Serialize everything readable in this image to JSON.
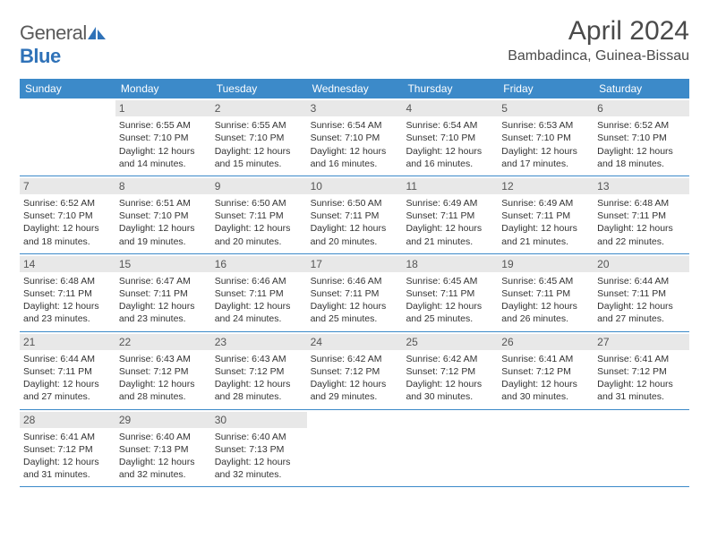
{
  "brand": {
    "name_part1": "General",
    "name_part2": "Blue"
  },
  "title": "April 2024",
  "location": "Bambadinca, Guinea-Bissau",
  "styling": {
    "header_bg": "#3c8ac9",
    "header_text": "#ffffff",
    "daynum_bg": "#e8e8e8",
    "daynum_text": "#555555",
    "body_text": "#333333",
    "row_border": "#3c8ac9",
    "page_bg": "#ffffff",
    "font_family": "Arial",
    "title_fontsize": 30,
    "location_fontsize": 16,
    "dow_fontsize": 12,
    "body_fontsize": 10.5
  },
  "days_of_week": [
    "Sunday",
    "Monday",
    "Tuesday",
    "Wednesday",
    "Thursday",
    "Friday",
    "Saturday"
  ],
  "weeks": [
    [
      null,
      {
        "n": "1",
        "sr": "6:55 AM",
        "ss": "7:10 PM",
        "dl": "12 hours and 14 minutes."
      },
      {
        "n": "2",
        "sr": "6:55 AM",
        "ss": "7:10 PM",
        "dl": "12 hours and 15 minutes."
      },
      {
        "n": "3",
        "sr": "6:54 AM",
        "ss": "7:10 PM",
        "dl": "12 hours and 16 minutes."
      },
      {
        "n": "4",
        "sr": "6:54 AM",
        "ss": "7:10 PM",
        "dl": "12 hours and 16 minutes."
      },
      {
        "n": "5",
        "sr": "6:53 AM",
        "ss": "7:10 PM",
        "dl": "12 hours and 17 minutes."
      },
      {
        "n": "6",
        "sr": "6:52 AM",
        "ss": "7:10 PM",
        "dl": "12 hours and 18 minutes."
      }
    ],
    [
      {
        "n": "7",
        "sr": "6:52 AM",
        "ss": "7:10 PM",
        "dl": "12 hours and 18 minutes."
      },
      {
        "n": "8",
        "sr": "6:51 AM",
        "ss": "7:10 PM",
        "dl": "12 hours and 19 minutes."
      },
      {
        "n": "9",
        "sr": "6:50 AM",
        "ss": "7:11 PM",
        "dl": "12 hours and 20 minutes."
      },
      {
        "n": "10",
        "sr": "6:50 AM",
        "ss": "7:11 PM",
        "dl": "12 hours and 20 minutes."
      },
      {
        "n": "11",
        "sr": "6:49 AM",
        "ss": "7:11 PM",
        "dl": "12 hours and 21 minutes."
      },
      {
        "n": "12",
        "sr": "6:49 AM",
        "ss": "7:11 PM",
        "dl": "12 hours and 21 minutes."
      },
      {
        "n": "13",
        "sr": "6:48 AM",
        "ss": "7:11 PM",
        "dl": "12 hours and 22 minutes."
      }
    ],
    [
      {
        "n": "14",
        "sr": "6:48 AM",
        "ss": "7:11 PM",
        "dl": "12 hours and 23 minutes."
      },
      {
        "n": "15",
        "sr": "6:47 AM",
        "ss": "7:11 PM",
        "dl": "12 hours and 23 minutes."
      },
      {
        "n": "16",
        "sr": "6:46 AM",
        "ss": "7:11 PM",
        "dl": "12 hours and 24 minutes."
      },
      {
        "n": "17",
        "sr": "6:46 AM",
        "ss": "7:11 PM",
        "dl": "12 hours and 25 minutes."
      },
      {
        "n": "18",
        "sr": "6:45 AM",
        "ss": "7:11 PM",
        "dl": "12 hours and 25 minutes."
      },
      {
        "n": "19",
        "sr": "6:45 AM",
        "ss": "7:11 PM",
        "dl": "12 hours and 26 minutes."
      },
      {
        "n": "20",
        "sr": "6:44 AM",
        "ss": "7:11 PM",
        "dl": "12 hours and 27 minutes."
      }
    ],
    [
      {
        "n": "21",
        "sr": "6:44 AM",
        "ss": "7:11 PM",
        "dl": "12 hours and 27 minutes."
      },
      {
        "n": "22",
        "sr": "6:43 AM",
        "ss": "7:12 PM",
        "dl": "12 hours and 28 minutes."
      },
      {
        "n": "23",
        "sr": "6:43 AM",
        "ss": "7:12 PM",
        "dl": "12 hours and 28 minutes."
      },
      {
        "n": "24",
        "sr": "6:42 AM",
        "ss": "7:12 PM",
        "dl": "12 hours and 29 minutes."
      },
      {
        "n": "25",
        "sr": "6:42 AM",
        "ss": "7:12 PM",
        "dl": "12 hours and 30 minutes."
      },
      {
        "n": "26",
        "sr": "6:41 AM",
        "ss": "7:12 PM",
        "dl": "12 hours and 30 minutes."
      },
      {
        "n": "27",
        "sr": "6:41 AM",
        "ss": "7:12 PM",
        "dl": "12 hours and 31 minutes."
      }
    ],
    [
      {
        "n": "28",
        "sr": "6:41 AM",
        "ss": "7:12 PM",
        "dl": "12 hours and 31 minutes."
      },
      {
        "n": "29",
        "sr": "6:40 AM",
        "ss": "7:13 PM",
        "dl": "12 hours and 32 minutes."
      },
      {
        "n": "30",
        "sr": "6:40 AM",
        "ss": "7:13 PM",
        "dl": "12 hours and 32 minutes."
      },
      null,
      null,
      null,
      null
    ]
  ],
  "labels": {
    "sunrise": "Sunrise:",
    "sunset": "Sunset:",
    "daylight": "Daylight:"
  }
}
